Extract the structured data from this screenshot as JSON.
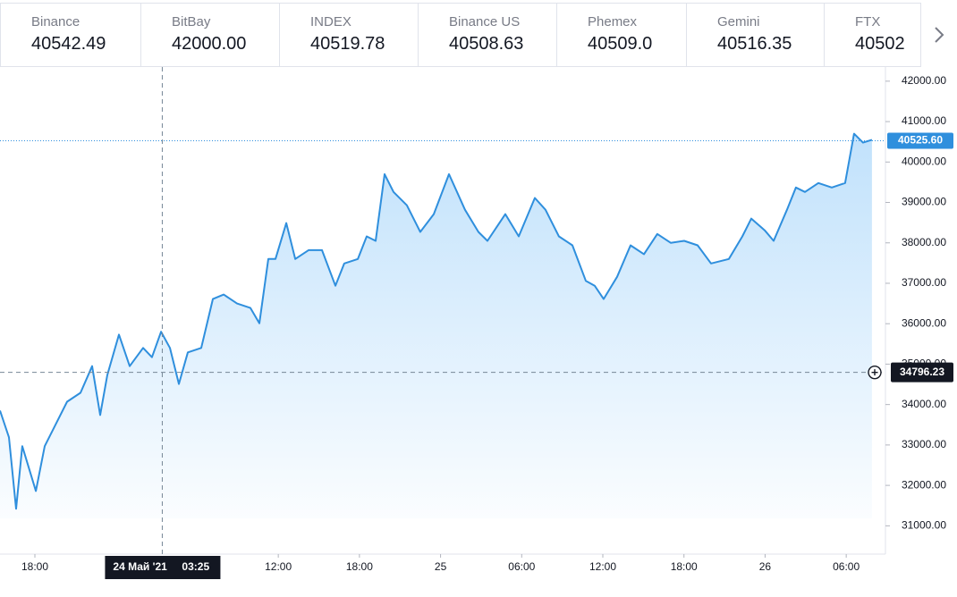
{
  "exchanges": [
    {
      "name": "Binance",
      "price": "40542.49"
    },
    {
      "name": "BitBay",
      "price": "42000.00"
    },
    {
      "name": "INDEX",
      "price": "40519.78"
    },
    {
      "name": "Binance US",
      "price": "40508.63"
    },
    {
      "name": "Phemex",
      "price": "40509.0"
    },
    {
      "name": "Gemini",
      "price": "40516.35"
    },
    {
      "name": "FTX",
      "price": "40502"
    }
  ],
  "chart_data": {
    "type": "area",
    "color": "#2f8fdd",
    "x": [
      -8.58,
      -7.92,
      -7.39,
      -6.93,
      -5.93,
      -5.27,
      -4.61,
      -3.62,
      -2.63,
      -1.77,
      -1.17,
      -0.64,
      0.22,
      1.01,
      2.0,
      2.66,
      3.33,
      3.99,
      4.65,
      5.31,
      6.3,
      7.16,
      7.96,
      8.95,
      9.94,
      10.6,
      11.26,
      11.79,
      12.59,
      13.25,
      14.24,
      15.23,
      16.22,
      16.88,
      17.88,
      18.54,
      19.2,
      19.86,
      20.52,
      21.51,
      22.5,
      23.5,
      24.62,
      25.81,
      26.8,
      27.47,
      28.79,
      29.78,
      30.97,
      31.76,
      32.75,
      33.75,
      34.74,
      35.4,
      36.06,
      37.06,
      38.05,
      39.04,
      40.03,
      41.02,
      42.02,
      43.01,
      44.0,
      45.32,
      46.32,
      46.98,
      47.97,
      48.63,
      49.62,
      50.28,
      50.95,
      51.94,
      52.93,
      53.92,
      54.58,
      55.24,
      55.9
    ],
    "values": [
      33850,
      33190,
      31420,
      32970,
      31860,
      32970,
      33410,
      34070,
      34290,
      34950,
      33740,
      34730,
      35730,
      34950,
      35400,
      35170,
      35800,
      35400,
      34510,
      35290,
      35400,
      36610,
      36720,
      36500,
      36390,
      36010,
      37600,
      37600,
      38490,
      37600,
      37820,
      37820,
      36940,
      37490,
      37600,
      38160,
      38050,
      39700,
      39260,
      38930,
      38270,
      38710,
      39700,
      38820,
      38270,
      38050,
      38710,
      38160,
      39110,
      38820,
      38160,
      37940,
      37060,
      36940,
      36610,
      37160,
      37940,
      37720,
      38220,
      38000,
      38050,
      37940,
      37490,
      37600,
      38160,
      38600,
      38310,
      38050,
      38820,
      39370,
      39260,
      39480,
      39370,
      39480,
      40700,
      40480,
      40550
    ],
    "xlim": [
      -8.58,
      56.9
    ],
    "ylim": [
      30300,
      42350
    ],
    "xticks": [
      {
        "value": -6,
        "label": "18:00"
      },
      {
        "value": 12,
        "label": "12:00"
      },
      {
        "value": 18,
        "label": "18:00"
      },
      {
        "value": 24,
        "label": "25"
      },
      {
        "value": 30,
        "label": "06:00"
      },
      {
        "value": 36,
        "label": "12:00"
      },
      {
        "value": 42,
        "label": "18:00"
      },
      {
        "value": 48,
        "label": "26"
      },
      {
        "value": 54,
        "label": "06:00"
      }
    ],
    "yticks": [
      {
        "value": 31000,
        "label": "31000.00"
      },
      {
        "value": 32000,
        "label": "32000.00"
      },
      {
        "value": 33000,
        "label": "33000.00"
      },
      {
        "value": 34000,
        "label": "34000.00"
      },
      {
        "value": 35000,
        "label": "35000.00"
      },
      {
        "value": 36000,
        "label": "36000.00"
      },
      {
        "value": 37000,
        "label": "37000.00"
      },
      {
        "value": 38000,
        "label": "38000.00"
      },
      {
        "value": 39000,
        "label": "39000.00"
      },
      {
        "value": 40000,
        "label": "40000.00"
      },
      {
        "value": 41000,
        "label": "41000.00"
      },
      {
        "value": 42000,
        "label": "42000.00"
      }
    ],
    "last_price": {
      "value": 40525.6,
      "label": "40525.60"
    },
    "crosshair": {
      "x": 3.42,
      "y": 34796.23,
      "date_label": "24 Май '21",
      "time_label": "03:25"
    }
  }
}
